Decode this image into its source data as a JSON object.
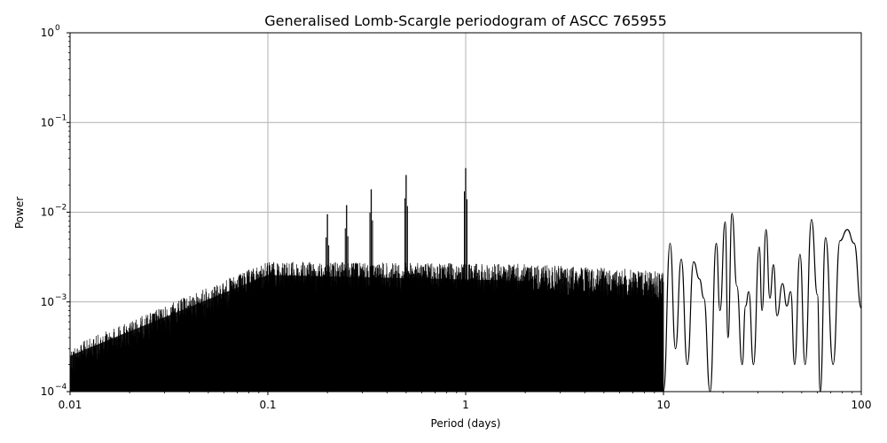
{
  "chart_data": {
    "type": "line",
    "title": "Generalised Lomb-Scargle periodogram of ASCC 765955",
    "xlabel": "Period (days)",
    "ylabel": "Power",
    "xscale": "log",
    "yscale": "log",
    "xlim": [
      0.01,
      100
    ],
    "ylim": [
      0.0001,
      1
    ],
    "grid": true,
    "line_color": "#000000",
    "x_ticks": [
      {
        "value": 0.01,
        "label": "0.01"
      },
      {
        "value": 0.1,
        "label": "0.1"
      },
      {
        "value": 1,
        "label": "1"
      },
      {
        "value": 10,
        "label": "10"
      },
      {
        "value": 100,
        "label": "100"
      }
    ],
    "y_ticks": [
      {
        "value": 0.0001,
        "base": "10",
        "exp": "−4"
      },
      {
        "value": 0.001,
        "base": "10",
        "exp": "−3"
      },
      {
        "value": 0.01,
        "base": "10",
        "exp": "−2"
      },
      {
        "value": 0.1,
        "base": "10",
        "exp": "−1"
      },
      {
        "value": 1,
        "base": "10",
        "exp": "0"
      }
    ],
    "peaks": [
      {
        "x": 0.333,
        "y": 0.018
      },
      {
        "x": 0.5,
        "y": 0.026
      },
      {
        "x": 1.0,
        "y": 0.031
      },
      {
        "x": 0.25,
        "y": 0.012
      },
      {
        "x": 0.2,
        "y": 0.0095
      },
      {
        "x": 20,
        "y": 0.0078
      },
      {
        "x": 22,
        "y": 0.0097
      },
      {
        "x": 32,
        "y": 0.0064
      },
      {
        "x": 55,
        "y": 0.0083
      },
      {
        "x": 85,
        "y": 0.0064
      }
    ],
    "long_period_curve": [
      [
        10,
        0.0001
      ],
      [
        10.8,
        0.0045
      ],
      [
        11.5,
        0.0003
      ],
      [
        12.3,
        0.003
      ],
      [
        13.2,
        0.0002
      ],
      [
        14.2,
        0.0028
      ],
      [
        15.2,
        0.0018
      ],
      [
        16,
        0.0011
      ],
      [
        17.2,
        0.0001
      ],
      [
        18.5,
        0.0045
      ],
      [
        19.3,
        0.0008
      ],
      [
        20.5,
        0.0078
      ],
      [
        21.2,
        0.0004
      ],
      [
        22.2,
        0.0097
      ],
      [
        23.5,
        0.0015
      ],
      [
        25,
        0.0002
      ],
      [
        26,
        0.0009
      ],
      [
        27,
        0.0013
      ],
      [
        28.5,
        0.0002
      ],
      [
        30.5,
        0.0041
      ],
      [
        31.5,
        0.0008
      ],
      [
        33,
        0.0064
      ],
      [
        34.5,
        0.0011
      ],
      [
        36,
        0.0026
      ],
      [
        37.5,
        0.0007
      ],
      [
        40,
        0.0016
      ],
      [
        42,
        0.0009
      ],
      [
        44,
        0.0013
      ],
      [
        46,
        0.0002
      ],
      [
        49,
        0.0034
      ],
      [
        52,
        0.0002
      ],
      [
        56,
        0.0083
      ],
      [
        60,
        0.0012
      ],
      [
        62,
        0.0001
      ],
      [
        66,
        0.0052
      ],
      [
        72,
        0.0002
      ],
      [
        78,
        0.0048
      ],
      [
        85,
        0.0064
      ],
      [
        92,
        0.0045
      ],
      [
        100,
        0.00085
      ]
    ]
  }
}
